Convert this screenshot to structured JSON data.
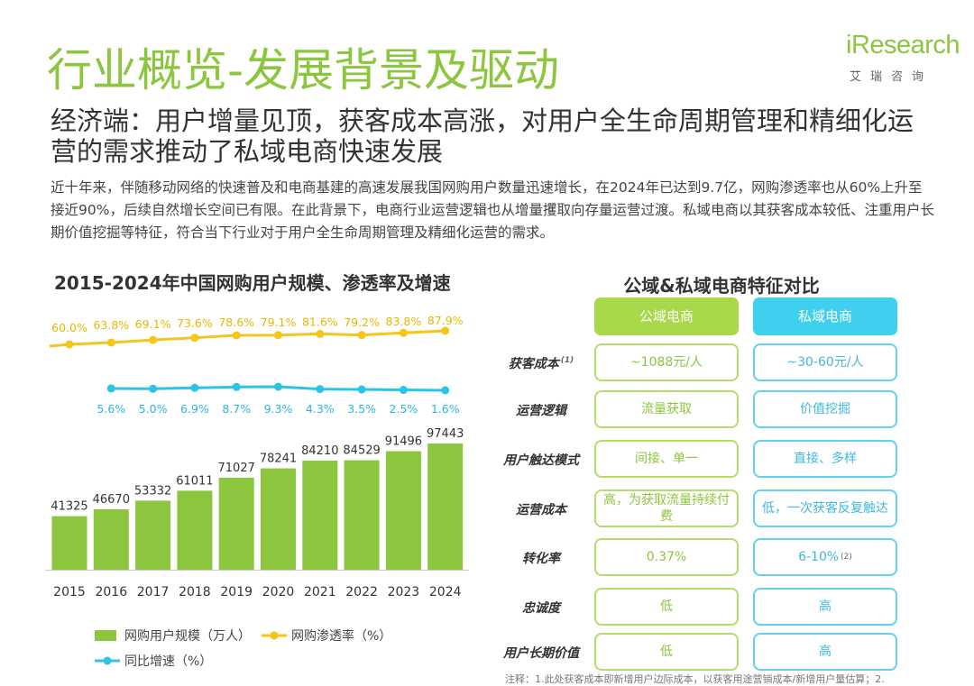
{
  "header": {
    "title": "行业概览-发展背景及驱动",
    "subtitle": "经济端：用户增量见顶，获客成本高涨，对用户全生命周期管理和精细化运营的需求推动了私域电商快速发展",
    "intro": "近十年来，伴随移动网络的快速普及和电商基建的高速发展我国网购用户数量迅速增长，在2024年已达到9.7亿，网购渗透率也从60%上升至接近90%，后续自然增长空间已有限。在此背景下，电商行业运营逻辑也从增量攫取向存量运营过渡。私域电商以其获客成本较低、注重用户长期价值挖掘等特征，符合当下行业对于用户全生命周期管理及精细化运营的需求。"
  },
  "logo": {
    "word": "iResearch",
    "cn": "艾瑞咨询"
  },
  "chart_data": {
    "type": "bar",
    "title": "2015-2024年中国网购用户规模、渗透率及增速",
    "categories": [
      "2015",
      "2016",
      "2017",
      "2018",
      "2019",
      "2020",
      "2021",
      "2022",
      "2023",
      "2024"
    ],
    "series": [
      {
        "name": "网购用户规模（万人）",
        "kind": "bar",
        "color": "#8cc63f",
        "values": [
          41325,
          46670,
          53332,
          61011,
          71027,
          78241,
          84210,
          84529,
          91496,
          97443
        ]
      },
      {
        "name": "网购渗透率（%）",
        "kind": "line",
        "color": "#f5c518",
        "values": [
          60.0,
          63.8,
          69.1,
          73.6,
          78.6,
          79.1,
          81.6,
          79.2,
          83.8,
          87.9
        ]
      },
      {
        "name": "同比增速（%）",
        "kind": "line",
        "color": "#29c4e8",
        "values": [
          null,
          5.6,
          5.0,
          6.9,
          8.7,
          9.3,
          4.3,
          3.5,
          2.5,
          1.6
        ]
      }
    ],
    "grid": false,
    "legend": "bottom"
  },
  "comparison": {
    "title": "公域&私域电商特征对比",
    "col_public": "公域电商",
    "col_private": "私域电商",
    "rows": [
      {
        "label": "获客成本",
        "note": "(1)",
        "public": "~1088元/人",
        "private": "~30-60元/人",
        "private_note": ""
      },
      {
        "label": "运营逻辑",
        "note": "",
        "public": "流量获取",
        "private": "价值挖掘",
        "private_note": ""
      },
      {
        "label": "用户触达模式",
        "note": "",
        "public": "间接、单一",
        "private": "直接、多样",
        "private_note": ""
      },
      {
        "label": "运营成本",
        "note": "",
        "public": "高，为获取流量持续付费",
        "private": "低，一次获客反复触达",
        "private_note": ""
      },
      {
        "label": "转化率",
        "note": "",
        "public": "0.37%",
        "private": "6-10%",
        "private_note": "(2)"
      },
      {
        "label": "忠诚度",
        "note": "",
        "public": "低",
        "private": "高",
        "private_note": ""
      },
      {
        "label": "用户长期价值",
        "note": "",
        "public": "低",
        "private": "高",
        "private_note": ""
      }
    ]
  },
  "footnote": "注释：1.此处获客成本即新增用户边际成本，以获客用途营销成本/新增用户量估算；2."
}
